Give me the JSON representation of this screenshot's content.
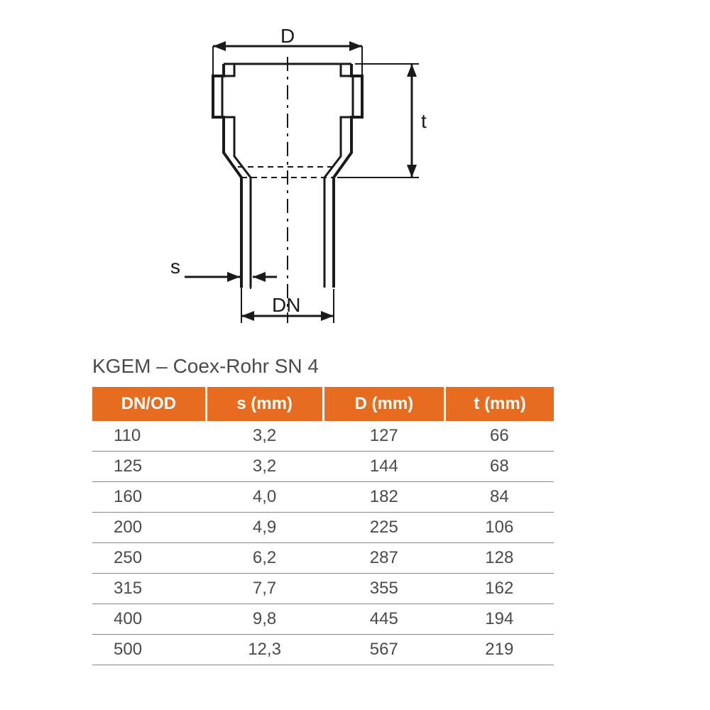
{
  "diagram": {
    "labels": {
      "D": "D",
      "t": "t",
      "s": "s",
      "DN": "DN"
    },
    "stroke_color": "#1a1a1a",
    "label_color": "#1a1a1a",
    "label_fontsize": 28,
    "stroke_width": 4
  },
  "table": {
    "title": "KGEM – Coex-Rohr SN 4",
    "title_fontsize": 28,
    "title_color": "#4a4a4a",
    "header_bg": "#e86c1f",
    "header_fg": "#ffffff",
    "header_fontsize": 24,
    "cell_fontsize": 24,
    "cell_color": "#4a4a4a",
    "row_border_color": "#888888",
    "columns": [
      "DN/OD",
      "s (mm)",
      "D (mm)",
      "t (mm)"
    ],
    "rows": [
      [
        "110",
        "3,2",
        "127",
        "66"
      ],
      [
        "125",
        "3,2",
        "144",
        "68"
      ],
      [
        "160",
        "4,0",
        "182",
        "84"
      ],
      [
        "200",
        "4,9",
        "225",
        "106"
      ],
      [
        "250",
        "6,2",
        "287",
        "128"
      ],
      [
        "315",
        "7,7",
        "355",
        "162"
      ],
      [
        "400",
        "9,8",
        "445",
        "194"
      ],
      [
        "500",
        "12,3",
        "567",
        "219"
      ]
    ]
  }
}
